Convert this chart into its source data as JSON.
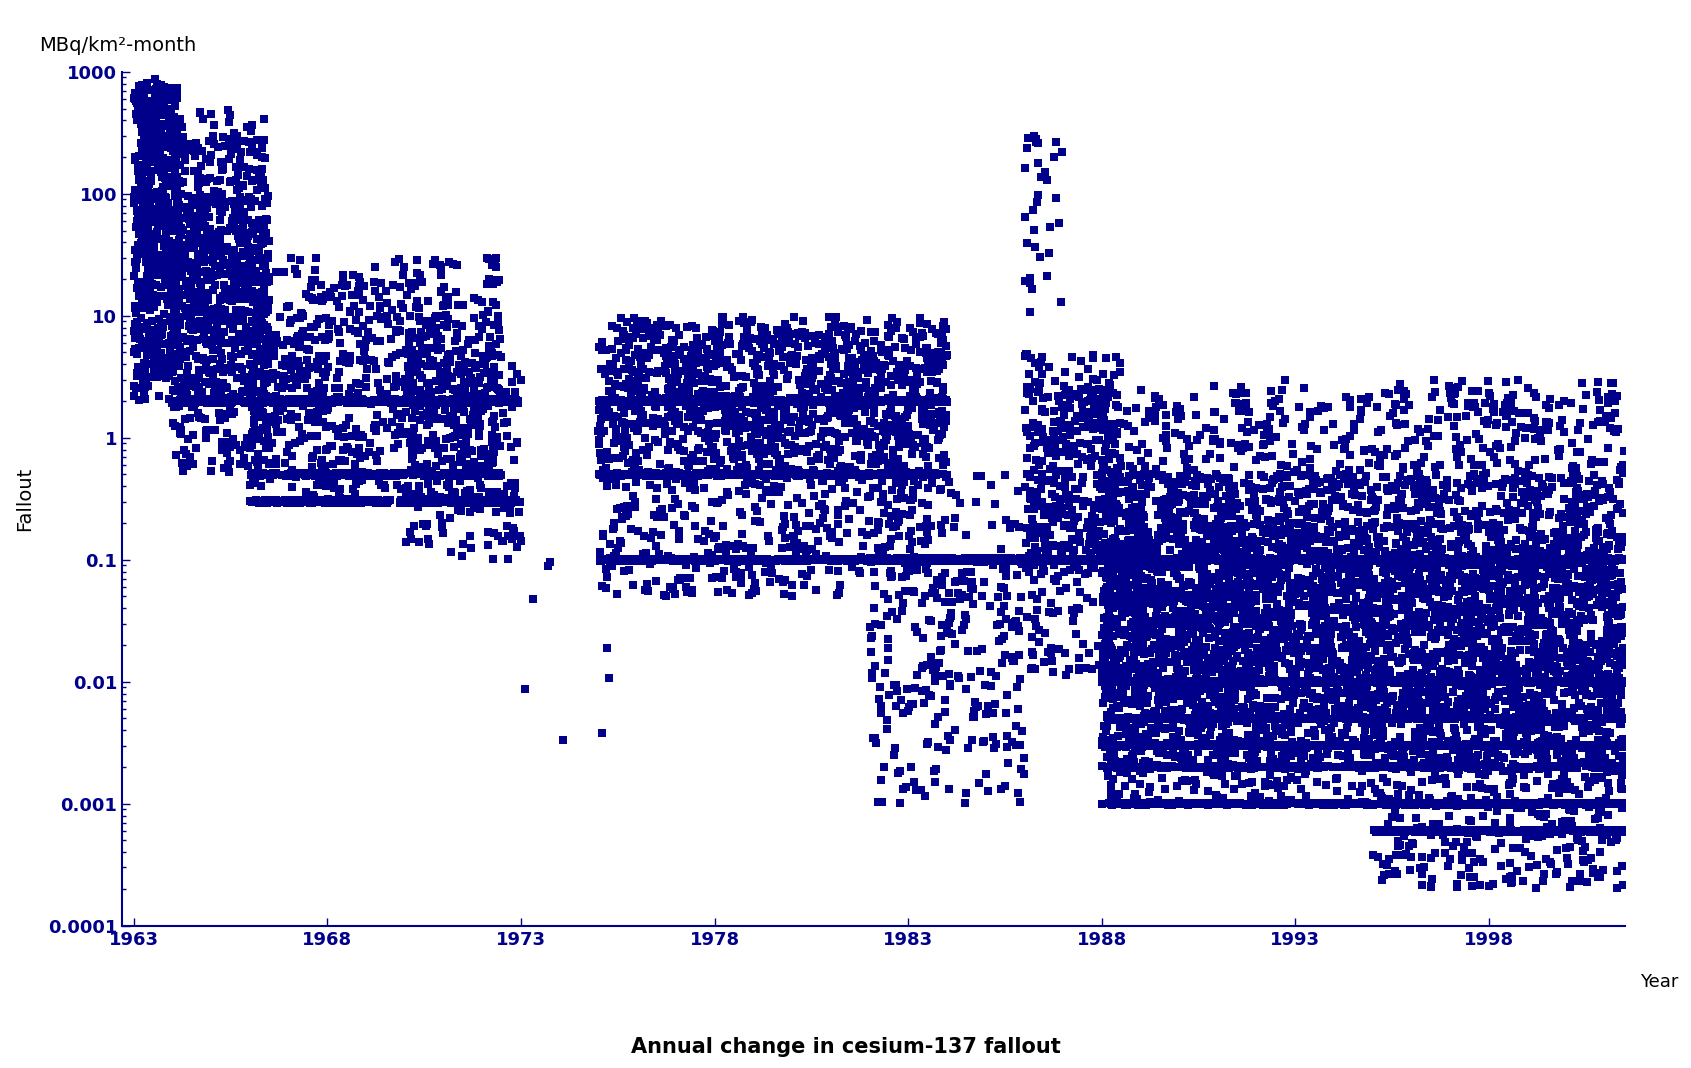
{
  "title": "Annual change in cesium-137 fallout",
  "ylabel": "Fallout",
  "xlabel": "Year",
  "yunits": "MBq/km²-month",
  "ymin": 0.0001,
  "ymax": 1000,
  "xmin": 1963,
  "xmax": 2001.5,
  "yticks": [
    0.0001,
    0.001,
    0.01,
    0.1,
    1,
    10,
    100,
    1000
  ],
  "ytick_labels": [
    "0.0001",
    "0.001",
    "0.01",
    "0.1",
    "1",
    "10",
    "100",
    "1000"
  ],
  "xticks": [
    1963,
    1968,
    1973,
    1978,
    1983,
    1988,
    1993,
    1998
  ],
  "dot_color": "#00008B",
  "background_color": "#ffffff",
  "axis_color": "#00008B",
  "marker_size": 40,
  "seed": 42
}
